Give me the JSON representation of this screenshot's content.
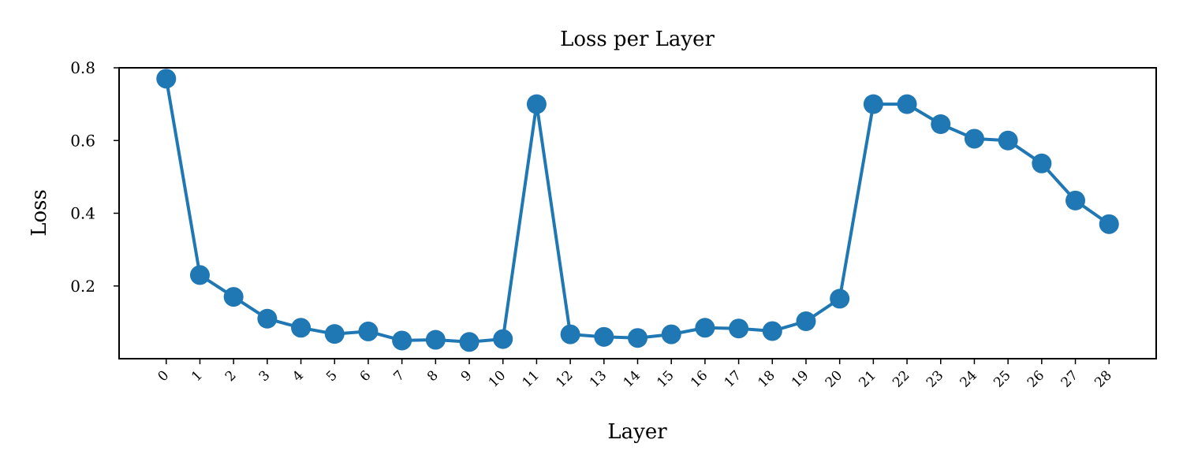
{
  "chart_data": {
    "type": "line",
    "title": "Loss per Layer",
    "xlabel": "Layer",
    "ylabel": "Loss",
    "x": [
      0,
      1,
      2,
      3,
      4,
      5,
      6,
      7,
      8,
      9,
      10,
      11,
      12,
      13,
      14,
      15,
      16,
      17,
      18,
      19,
      20,
      21,
      22,
      23,
      24,
      25,
      26,
      27,
      28
    ],
    "series": [
      {
        "values": [
          0.77,
          0.23,
          0.17,
          0.11,
          0.085,
          0.068,
          0.075,
          0.05,
          0.052,
          0.046,
          0.054,
          0.7,
          0.067,
          0.06,
          0.057,
          0.067,
          0.085,
          0.083,
          0.076,
          0.103,
          0.165,
          0.7,
          0.7,
          0.645,
          0.605,
          0.6,
          0.537,
          0.435,
          0.37
        ],
        "color": "#1f77b4",
        "marker": "circle"
      }
    ],
    "xticks": [
      "0",
      "1",
      "2",
      "3",
      "4",
      "5",
      "6",
      "7",
      "8",
      "9",
      "10",
      "11",
      "12",
      "13",
      "14",
      "15",
      "16",
      "17",
      "18",
      "19",
      "20",
      "21",
      "22",
      "23",
      "24",
      "25",
      "26",
      "27",
      "28"
    ],
    "yticks": [
      "0.2",
      "0.4",
      "0.6",
      "0.8"
    ],
    "ytick_values": [
      0.2,
      0.4,
      0.6,
      0.8
    ],
    "ylim": [
      0.0,
      0.8
    ],
    "xlim": [
      -1.4,
      29.4
    ],
    "grid": false,
    "legend": false
  }
}
